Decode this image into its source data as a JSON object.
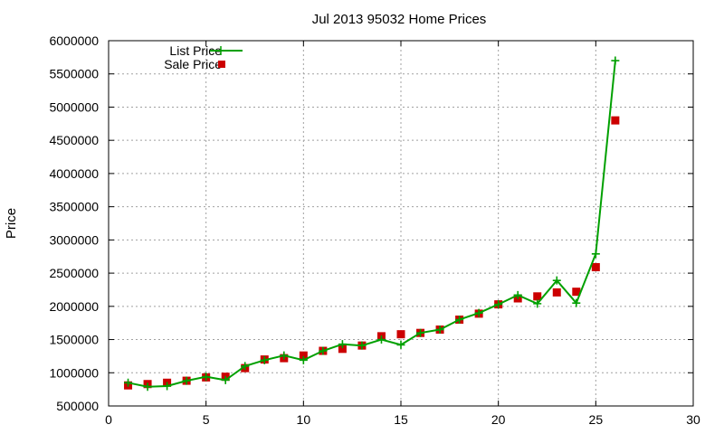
{
  "chart_data": {
    "type": "line",
    "title": "Jul 2013 95032 Home Prices",
    "xlabel": "",
    "ylabel": "Price",
    "xlim": [
      0,
      30
    ],
    "ylim": [
      500000,
      6000000
    ],
    "x_ticks": [
      "0",
      "5",
      "10",
      "15",
      "20",
      "25",
      "30"
    ],
    "y_ticks": [
      "500000",
      "1000000",
      "1500000",
      "2000000",
      "2500000",
      "3000000",
      "3500000",
      "4000000",
      "4500000",
      "5000000",
      "5500000",
      "6000000"
    ],
    "grid": true,
    "legend_position": "top-left",
    "x": [
      1,
      2,
      3,
      4,
      5,
      6,
      7,
      8,
      9,
      10,
      11,
      12,
      13,
      14,
      15,
      16,
      17,
      18,
      19,
      20,
      21,
      22,
      23,
      24,
      25,
      26
    ],
    "series": [
      {
        "name": "List Price",
        "style": "line-with-plus-markers",
        "color": "#00a000",
        "values": [
          850000,
          790000,
          800000,
          880000,
          940000,
          890000,
          1100000,
          1190000,
          1260000,
          1190000,
          1330000,
          1430000,
          1410000,
          1500000,
          1420000,
          1600000,
          1650000,
          1800000,
          1900000,
          2030000,
          2170000,
          2040000,
          2390000,
          2050000,
          2790000,
          5700000
        ]
      },
      {
        "name": "Sale Price",
        "style": "square-markers",
        "color": "#cc0000",
        "values": [
          810000,
          830000,
          850000,
          880000,
          930000,
          940000,
          1070000,
          1200000,
          1220000,
          1260000,
          1330000,
          1360000,
          1410000,
          1550000,
          1580000,
          1600000,
          1650000,
          1800000,
          1890000,
          2030000,
          2120000,
          2150000,
          2210000,
          2220000,
          2590000,
          4800000
        ]
      }
    ]
  }
}
